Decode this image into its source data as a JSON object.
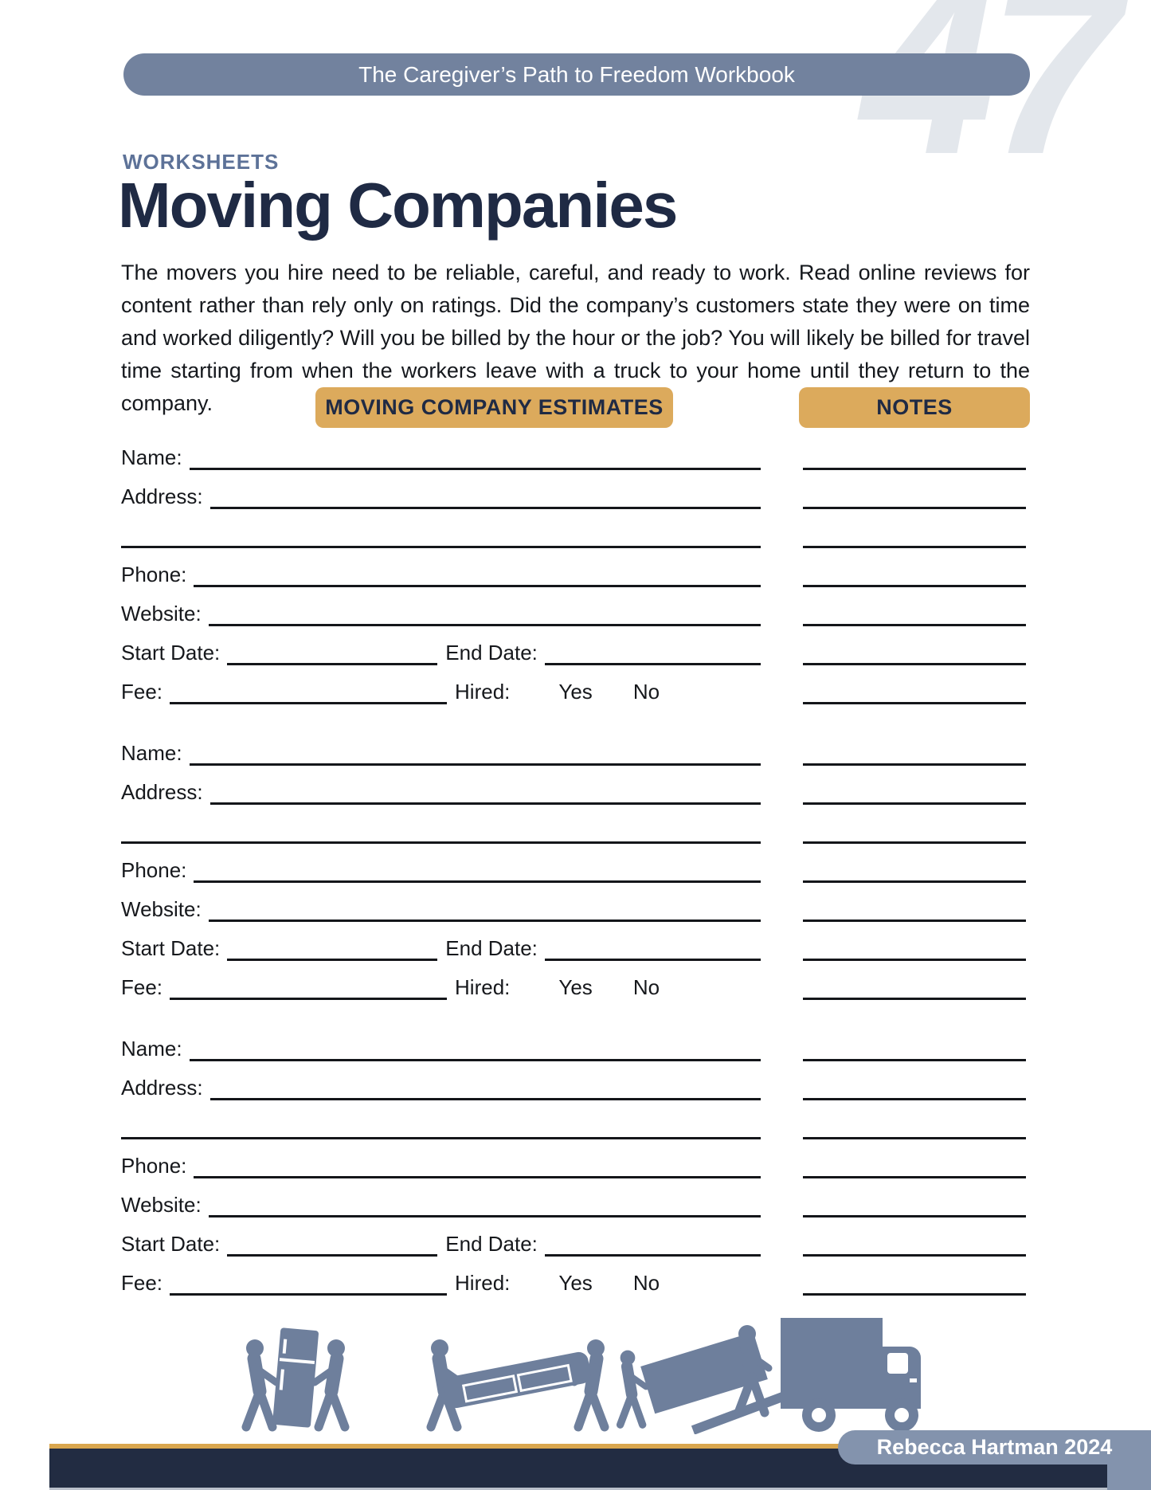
{
  "page": {
    "header_pill": "The Caregiver’s Path to Freedom Workbook",
    "page_number": "47",
    "eyebrow": "WORKSHEETS",
    "title": "Moving Companies",
    "intro": "The movers you hire need to be reliable, careful, and ready to work. Read online reviews for content rather than rely only on ratings. Did the company’s customers state they were on time and worked diligently? Will you be billed by the hour or the job? You will likely be billed for travel time starting from when the workers leave with a truck to your home until they return to the company."
  },
  "columns": {
    "estimates_header": "MOVING COMPANY ESTIMATES",
    "notes_header": "NOTES"
  },
  "form": {
    "labels": {
      "name": "Name:",
      "address": "Address:",
      "phone": "Phone:",
      "website": "Website:",
      "start_date": "Start Date:",
      "end_date": "End Date:",
      "fee": "Fee:",
      "hired": "Hired:",
      "yes": "Yes",
      "no": "No"
    },
    "blocks": [
      {
        "fields": {
          "name": "",
          "address": "",
          "address2": "",
          "phone": "",
          "website": "",
          "start_date": "",
          "end_date": "",
          "fee": "",
          "hired": ""
        },
        "notes": [
          "",
          "",
          "",
          "",
          "",
          "",
          ""
        ]
      },
      {
        "fields": {
          "name": "",
          "address": "",
          "address2": "",
          "phone": "",
          "website": "",
          "start_date": "",
          "end_date": "",
          "fee": "",
          "hired": ""
        },
        "notes": [
          "",
          "",
          "",
          "",
          "",
          "",
          ""
        ]
      },
      {
        "fields": {
          "name": "",
          "address": "",
          "address2": "",
          "phone": "",
          "website": "",
          "start_date": "",
          "end_date": "",
          "fee": "",
          "hired": ""
        },
        "notes": [
          "",
          "",
          "",
          "",
          "",
          "",
          ""
        ]
      }
    ]
  },
  "footer": {
    "credit": "Rebecca Hartman 2024"
  },
  "icons": {
    "illustration": "movers-carrying-fridge-sofa-and-loading-truck"
  },
  "colors": {
    "steel_blue": "#72829e",
    "illustration_blue": "#6e7f9c",
    "badge_blue": "#8393ad",
    "gold": "#dcaa5c",
    "gold_stripe": "#d9a64e",
    "navy_text": "#1f2a44",
    "footer_navy": "#222c42",
    "watermark_gray": "#e3e7ec"
  }
}
